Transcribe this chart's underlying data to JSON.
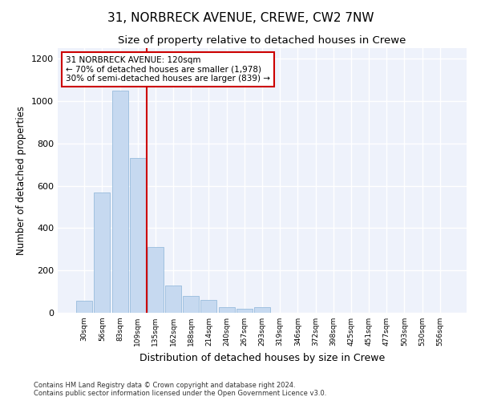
{
  "title": "31, NORBRECK AVENUE, CREWE, CW2 7NW",
  "subtitle": "Size of property relative to detached houses in Crewe",
  "xlabel": "Distribution of detached houses by size in Crewe",
  "ylabel": "Number of detached properties",
  "categories": [
    "30sqm",
    "56sqm",
    "83sqm",
    "109sqm",
    "135sqm",
    "162sqm",
    "188sqm",
    "214sqm",
    "240sqm",
    "267sqm",
    "293sqm",
    "319sqm",
    "346sqm",
    "372sqm",
    "398sqm",
    "425sqm",
    "451sqm",
    "477sqm",
    "503sqm",
    "530sqm",
    "556sqm"
  ],
  "values": [
    55,
    570,
    1050,
    730,
    310,
    130,
    80,
    60,
    28,
    20,
    25,
    0,
    0,
    0,
    0,
    0,
    0,
    0,
    0,
    0,
    0
  ],
  "bar_color": "#c6d9f0",
  "bar_edge_color": "#8ab4d8",
  "vline_x": 3.5,
  "vline_color": "#cc0000",
  "annotation_box_text": "31 NORBRECK AVENUE: 120sqm\n← 70% of detached houses are smaller (1,978)\n30% of semi-detached houses are larger (839) →",
  "annotation_box_color": "#cc0000",
  "ylim": [
    0,
    1250
  ],
  "yticks": [
    0,
    200,
    400,
    600,
    800,
    1000,
    1200
  ],
  "background_color": "#eef2fb",
  "footer_text": "Contains HM Land Registry data © Crown copyright and database right 2024.\nContains public sector information licensed under the Open Government Licence v3.0.",
  "title_fontsize": 11,
  "subtitle_fontsize": 9.5,
  "xlabel_fontsize": 9,
  "ylabel_fontsize": 8.5
}
